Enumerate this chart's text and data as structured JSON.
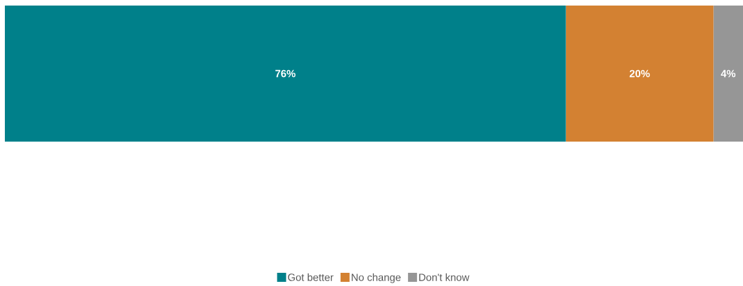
{
  "chart_data": {
    "type": "bar",
    "orientation": "horizontal",
    "stacked": true,
    "categories": [
      null
    ],
    "legend": "bottom",
    "series": [
      {
        "name": "Got better",
        "color": "#00808a",
        "values": [
          76
        ],
        "value_labels": [
          "76%"
        ]
      },
      {
        "name": "No change",
        "color": "#d38132",
        "values": [
          20
        ],
        "value_labels": [
          "20%"
        ]
      },
      {
        "name": "Don't know",
        "color": "#969696",
        "values": [
          4
        ],
        "value_labels": [
          "4%"
        ]
      }
    ]
  }
}
